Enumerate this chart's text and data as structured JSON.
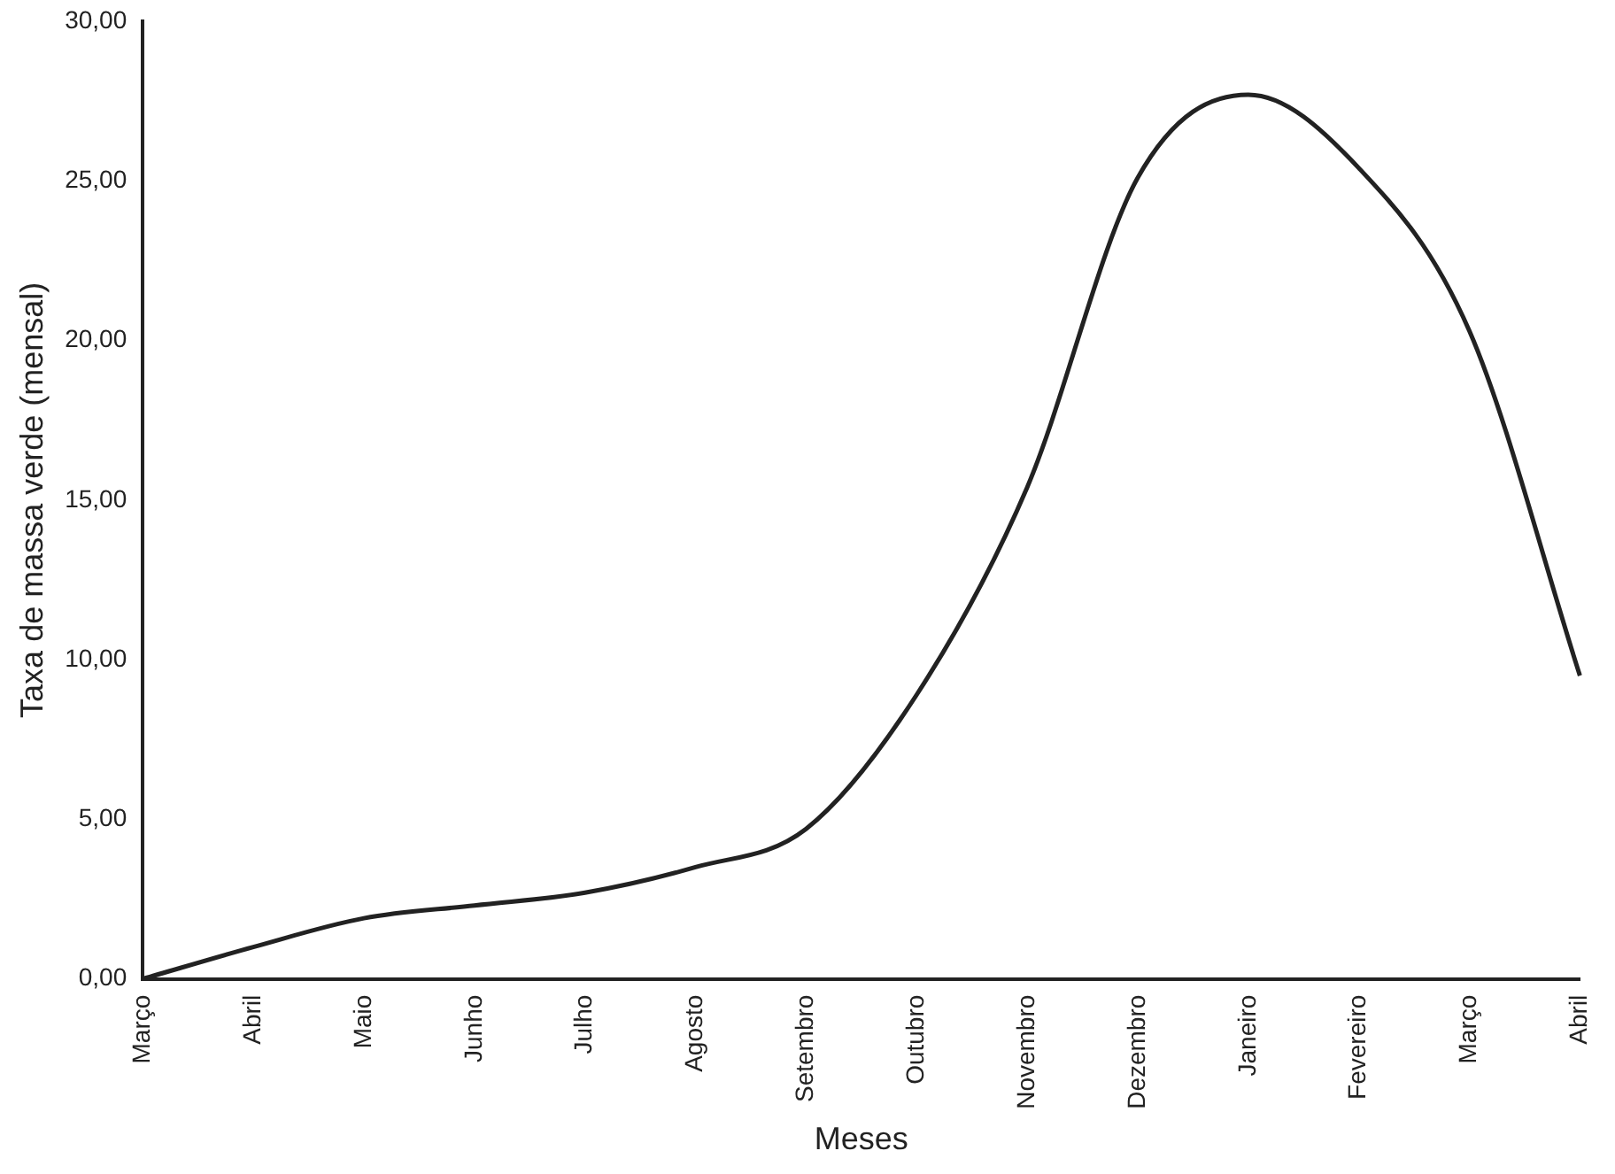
{
  "chart_data": {
    "type": "line",
    "xlabel": "Meses",
    "ylabel": "Taxa de massa verde (mensal)",
    "categories": [
      "Março",
      "Abril",
      "Maio",
      "Junho",
      "Julho",
      "Agosto",
      "Setembro",
      "Outubro",
      "Novembro",
      "Dezembro",
      "Janeiro",
      "Fevereiro",
      "Março",
      "Abril"
    ],
    "values": [
      0,
      1.0,
      1.9,
      2.3,
      2.7,
      3.5,
      4.7,
      8.9,
      15.4,
      25.1,
      27.7,
      25.4,
      20.3,
      9.5
    ],
    "color": "#222222",
    "ylim": [
      0,
      30
    ],
    "yticks": [
      {
        "value": 0,
        "label": "0,00"
      },
      {
        "value": 5,
        "label": "5,00"
      },
      {
        "value": 10,
        "label": "10,00"
      },
      {
        "value": 15,
        "label": "15,00"
      },
      {
        "value": 20,
        "label": "20,00"
      },
      {
        "value": 25,
        "label": "25,00"
      },
      {
        "value": 30,
        "label": "30,00"
      }
    ],
    "grid": false,
    "legend": false,
    "marker": "none",
    "line_style": "solid"
  }
}
